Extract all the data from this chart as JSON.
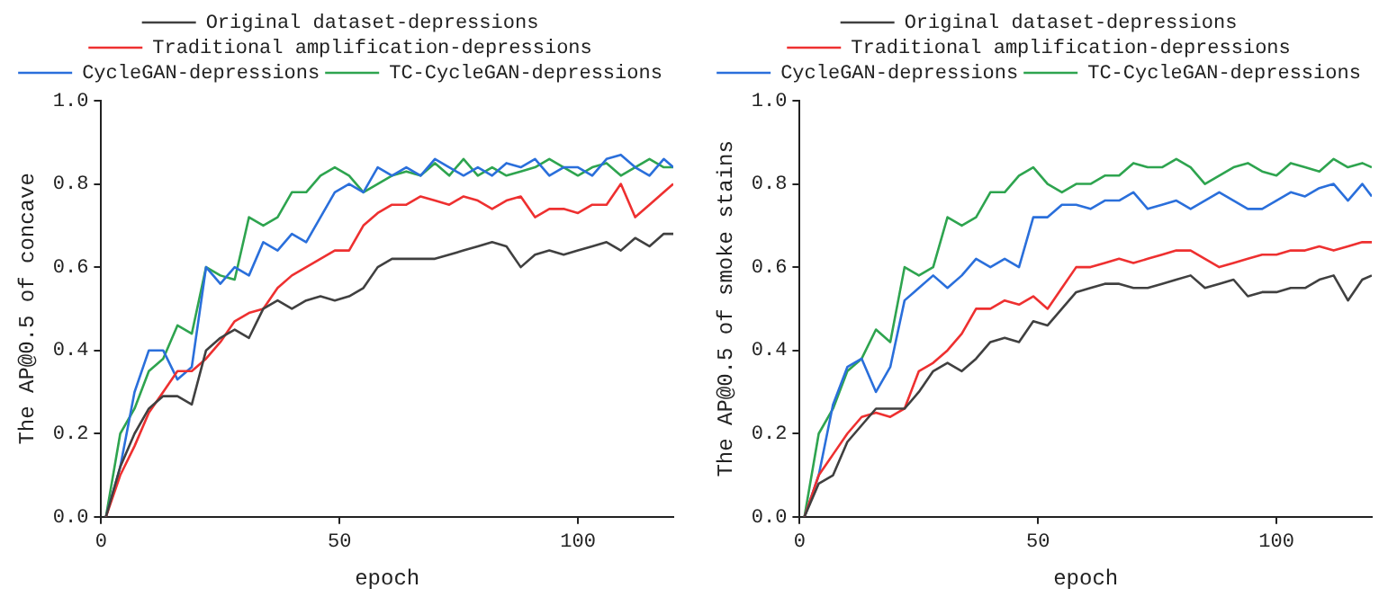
{
  "chart_data": [
    {
      "type": "line",
      "xlabel": "epoch",
      "ylabel": "The AP@0.5 of concave",
      "legend": "top",
      "grid": false,
      "marker": "none",
      "line_style": "solid",
      "xlim": [
        0,
        120
      ],
      "xticks": [
        0,
        50,
        100
      ],
      "ylim": [
        0,
        1
      ],
      "yticks": [
        {
          "value": 0,
          "label": "0.0"
        },
        {
          "value": 0.2,
          "label": "0.2"
        },
        {
          "value": 0.4,
          "label": "0.4"
        },
        {
          "value": 0.6,
          "label": "0.6"
        },
        {
          "value": 0.8,
          "label": "0.8"
        },
        {
          "value": 1,
          "label": "1.0"
        }
      ],
      "x": [
        1,
        4,
        7,
        10,
        13,
        16,
        19,
        22,
        25,
        28,
        31,
        34,
        37,
        40,
        43,
        46,
        49,
        52,
        55,
        58,
        61,
        64,
        67,
        70,
        73,
        76,
        79,
        82,
        85,
        88,
        91,
        94,
        97,
        100,
        103,
        106,
        109,
        112,
        115,
        118,
        120
      ],
      "series": [
        {
          "name": "Original dataset-depressions",
          "color": "#404040",
          "values": [
            0,
            0.12,
            0.2,
            0.26,
            0.29,
            0.29,
            0.27,
            0.4,
            0.43,
            0.45,
            0.43,
            0.5,
            0.52,
            0.5,
            0.52,
            0.53,
            0.52,
            0.53,
            0.55,
            0.6,
            0.62,
            0.62,
            0.62,
            0.62,
            0.63,
            0.64,
            0.65,
            0.66,
            0.65,
            0.6,
            0.63,
            0.64,
            0.63,
            0.64,
            0.65,
            0.66,
            0.64,
            0.67,
            0.65,
            0.68,
            0.68
          ]
        },
        {
          "name": "Traditional amplification-depressions",
          "color": "#ee3030",
          "values": [
            0,
            0.1,
            0.17,
            0.25,
            0.3,
            0.35,
            0.35,
            0.38,
            0.42,
            0.47,
            0.49,
            0.5,
            0.55,
            0.58,
            0.6,
            0.62,
            0.64,
            0.64,
            0.7,
            0.73,
            0.75,
            0.75,
            0.77,
            0.76,
            0.75,
            0.77,
            0.76,
            0.74,
            0.76,
            0.77,
            0.72,
            0.74,
            0.74,
            0.73,
            0.75,
            0.75,
            0.8,
            0.72,
            0.75,
            0.78,
            0.8
          ]
        },
        {
          "name": "CycleGAN-depressions",
          "color": "#2a6fdb",
          "values": [
            0,
            0.12,
            0.3,
            0.4,
            0.4,
            0.33,
            0.36,
            0.6,
            0.56,
            0.6,
            0.58,
            0.66,
            0.64,
            0.68,
            0.66,
            0.72,
            0.78,
            0.8,
            0.78,
            0.84,
            0.82,
            0.84,
            0.82,
            0.86,
            0.84,
            0.82,
            0.84,
            0.82,
            0.85,
            0.84,
            0.86,
            0.82,
            0.84,
            0.84,
            0.82,
            0.86,
            0.87,
            0.84,
            0.82,
            0.86,
            0.84
          ]
        },
        {
          "name": "TC-CycleGAN-depressions",
          "color": "#2ea44f",
          "values": [
            0,
            0.2,
            0.26,
            0.35,
            0.38,
            0.46,
            0.44,
            0.6,
            0.58,
            0.57,
            0.72,
            0.7,
            0.72,
            0.78,
            0.78,
            0.82,
            0.84,
            0.82,
            0.78,
            0.8,
            0.82,
            0.83,
            0.82,
            0.85,
            0.82,
            0.86,
            0.82,
            0.84,
            0.82,
            0.83,
            0.84,
            0.86,
            0.84,
            0.82,
            0.84,
            0.85,
            0.82,
            0.84,
            0.86,
            0.84,
            0.84
          ]
        }
      ]
    },
    {
      "type": "line",
      "xlabel": "epoch",
      "ylabel": "The AP@0.5 of smoke stains",
      "legend": "top",
      "grid": false,
      "marker": "none",
      "line_style": "solid",
      "xlim": [
        0,
        120
      ],
      "xticks": [
        0,
        50,
        100
      ],
      "ylim": [
        0,
        1
      ],
      "yticks": [
        {
          "value": 0,
          "label": "0.0"
        },
        {
          "value": 0.2,
          "label": "0.2"
        },
        {
          "value": 0.4,
          "label": "0.4"
        },
        {
          "value": 0.6,
          "label": "0.6"
        },
        {
          "value": 0.8,
          "label": "0.8"
        },
        {
          "value": 1,
          "label": "1.0"
        }
      ],
      "x": [
        1,
        4,
        7,
        10,
        13,
        16,
        19,
        22,
        25,
        28,
        31,
        34,
        37,
        40,
        43,
        46,
        49,
        52,
        55,
        58,
        61,
        64,
        67,
        70,
        73,
        76,
        79,
        82,
        85,
        88,
        91,
        94,
        97,
        100,
        103,
        106,
        109,
        112,
        115,
        118,
        120
      ],
      "series": [
        {
          "name": "Original dataset-depressions",
          "color": "#404040",
          "values": [
            0,
            0.08,
            0.1,
            0.18,
            0.22,
            0.26,
            0.26,
            0.26,
            0.3,
            0.35,
            0.37,
            0.35,
            0.38,
            0.42,
            0.43,
            0.42,
            0.47,
            0.46,
            0.5,
            0.54,
            0.55,
            0.56,
            0.56,
            0.55,
            0.55,
            0.56,
            0.57,
            0.58,
            0.55,
            0.56,
            0.57,
            0.53,
            0.54,
            0.54,
            0.55,
            0.55,
            0.57,
            0.58,
            0.52,
            0.57,
            0.58
          ]
        },
        {
          "name": "Traditional amplification-depressions",
          "color": "#ee3030",
          "values": [
            0,
            0.1,
            0.15,
            0.2,
            0.24,
            0.25,
            0.24,
            0.26,
            0.35,
            0.37,
            0.4,
            0.44,
            0.5,
            0.5,
            0.52,
            0.51,
            0.53,
            0.5,
            0.55,
            0.6,
            0.6,
            0.61,
            0.62,
            0.61,
            0.62,
            0.63,
            0.64,
            0.64,
            0.62,
            0.6,
            0.61,
            0.62,
            0.63,
            0.63,
            0.64,
            0.64,
            0.65,
            0.64,
            0.65,
            0.66,
            0.66
          ]
        },
        {
          "name": "CycleGAN-depressions",
          "color": "#2a6fdb",
          "values": [
            0,
            0.1,
            0.27,
            0.36,
            0.38,
            0.3,
            0.36,
            0.52,
            0.55,
            0.58,
            0.55,
            0.58,
            0.62,
            0.6,
            0.62,
            0.6,
            0.72,
            0.72,
            0.75,
            0.75,
            0.74,
            0.76,
            0.76,
            0.78,
            0.74,
            0.75,
            0.76,
            0.74,
            0.76,
            0.78,
            0.76,
            0.74,
            0.74,
            0.76,
            0.78,
            0.77,
            0.79,
            0.8,
            0.76,
            0.8,
            0.77
          ]
        },
        {
          "name": "TC-CycleGAN-depressions",
          "color": "#2ea44f",
          "values": [
            0,
            0.2,
            0.26,
            0.35,
            0.38,
            0.45,
            0.42,
            0.6,
            0.58,
            0.6,
            0.72,
            0.7,
            0.72,
            0.78,
            0.78,
            0.82,
            0.84,
            0.8,
            0.78,
            0.8,
            0.8,
            0.82,
            0.82,
            0.85,
            0.84,
            0.84,
            0.86,
            0.84,
            0.8,
            0.82,
            0.84,
            0.85,
            0.83,
            0.82,
            0.85,
            0.84,
            0.83,
            0.86,
            0.84,
            0.85,
            0.84
          ]
        }
      ]
    }
  ]
}
